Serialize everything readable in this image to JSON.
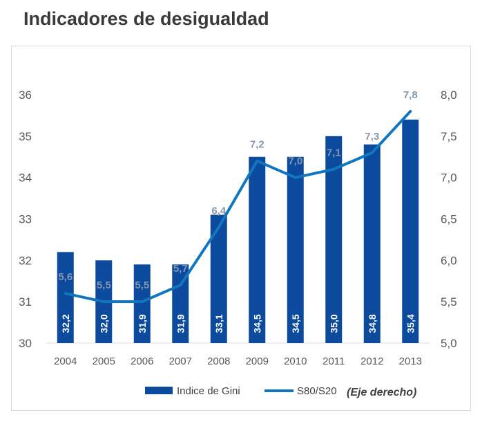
{
  "title": "Indicadores de desigualdad",
  "colors": {
    "bar": "#0b4a9c",
    "line": "#1176bf",
    "line_label": "#8497b0"
  },
  "chart_data": {
    "type": "bar",
    "categories": [
      "2004",
      "2005",
      "2006",
      "2007",
      "2008",
      "2009",
      "2010",
      "2011",
      "2012",
      "2013"
    ],
    "series": [
      {
        "name": "Indice de Gini",
        "type": "bar",
        "axis": "left",
        "values": [
          32.2,
          32.0,
          31.9,
          31.9,
          33.1,
          34.5,
          34.5,
          35.0,
          34.8,
          35.4
        ],
        "labels": [
          "32,2",
          "32,0",
          "31,9",
          "31,9",
          "33,1",
          "34,5",
          "34,5",
          "35,0",
          "34,8",
          "35,4"
        ]
      },
      {
        "name": "S80/S20",
        "type": "line",
        "axis": "right",
        "values": [
          5.6,
          5.5,
          5.5,
          5.7,
          6.4,
          7.2,
          7.0,
          7.1,
          7.3,
          7.8
        ],
        "labels": [
          "5,6",
          "5,5",
          "5,5",
          "5,7",
          "6,4",
          "7,2",
          "7,0",
          "7,1",
          "7,3",
          "7,8"
        ]
      }
    ],
    "y_left": {
      "min": 30,
      "max": 36,
      "ticks": [
        "30",
        "31",
        "32",
        "33",
        "34",
        "35",
        "36"
      ]
    },
    "y_right": {
      "min": 5.0,
      "max": 8.0,
      "ticks": [
        "5,0",
        "5,5",
        "6,0",
        "6,5",
        "7,0",
        "7,5",
        "8,0"
      ]
    },
    "legend_note": "(Eje derecho)",
    "legend_position": "bottom",
    "grid": false
  }
}
